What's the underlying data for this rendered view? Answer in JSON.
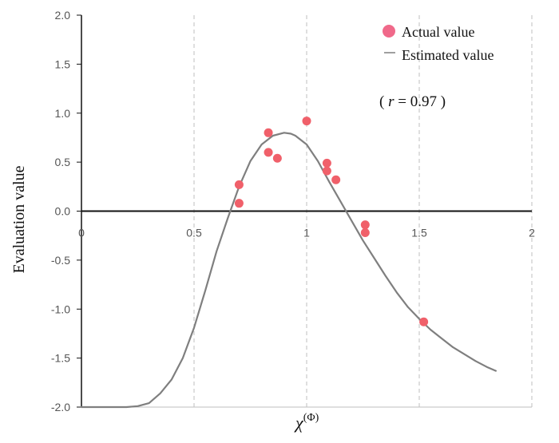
{
  "chart_data": {
    "type": "scatter",
    "xlabel": "χ(Φ)",
    "xlabel_base": "χ",
    "xlabel_sup": "(Φ)",
    "ylabel": "Evaluation value",
    "xlim": [
      0,
      2
    ],
    "ylim": [
      -2.0,
      2.0
    ],
    "xticks": [
      0,
      0.5,
      1,
      1.5,
      2
    ],
    "xtick_labels": [
      "0",
      "0.5",
      "1",
      "1.5",
      "2"
    ],
    "yticks": [
      -2.0,
      -1.5,
      -1.0,
      -0.5,
      0.0,
      0.5,
      1.0,
      1.5,
      2.0
    ],
    "ytick_labels": [
      "-2.0",
      "-1.5",
      "-1.0",
      "-0.5",
      "0.0",
      "0.5",
      "1.0",
      "1.5",
      "2.0"
    ],
    "grid": "vertical dashed",
    "legend_position": "top-right",
    "annotation": {
      "open": "( ",
      "var": "r",
      "rest": " = 0.97 )"
    },
    "series": [
      {
        "name": "Actual value",
        "kind": "points",
        "color": "#f0606a",
        "x": [
          0.7,
          0.7,
          0.83,
          0.83,
          0.87,
          1.0,
          1.09,
          1.09,
          1.13,
          1.26,
          1.26,
          1.52
        ],
        "y": [
          0.27,
          0.08,
          0.8,
          0.6,
          0.54,
          0.92,
          0.49,
          0.41,
          0.32,
          -0.14,
          -0.22,
          -1.13
        ]
      },
      {
        "name": "Estimated value",
        "kind": "line",
        "color": "#7f7f7f",
        "x": [
          0.0,
          0.1,
          0.2,
          0.25,
          0.3,
          0.35,
          0.4,
          0.45,
          0.5,
          0.55,
          0.6,
          0.65,
          0.7,
          0.75,
          0.8,
          0.85,
          0.9,
          0.93,
          0.95,
          1.0,
          1.05,
          1.1,
          1.15,
          1.2,
          1.25,
          1.3,
          1.35,
          1.4,
          1.45,
          1.5,
          1.55,
          1.6,
          1.65,
          1.7,
          1.75,
          1.8,
          1.84
        ],
        "y": [
          -2.0,
          -2.0,
          -2.0,
          -1.99,
          -1.96,
          -1.86,
          -1.72,
          -1.5,
          -1.19,
          -0.81,
          -0.41,
          -0.07,
          0.25,
          0.51,
          0.68,
          0.77,
          0.8,
          0.79,
          0.77,
          0.68,
          0.51,
          0.3,
          0.1,
          -0.1,
          -0.3,
          -0.48,
          -0.66,
          -0.83,
          -0.98,
          -1.1,
          -1.21,
          -1.3,
          -1.39,
          -1.46,
          -1.53,
          -1.59,
          -1.63
        ]
      }
    ]
  }
}
